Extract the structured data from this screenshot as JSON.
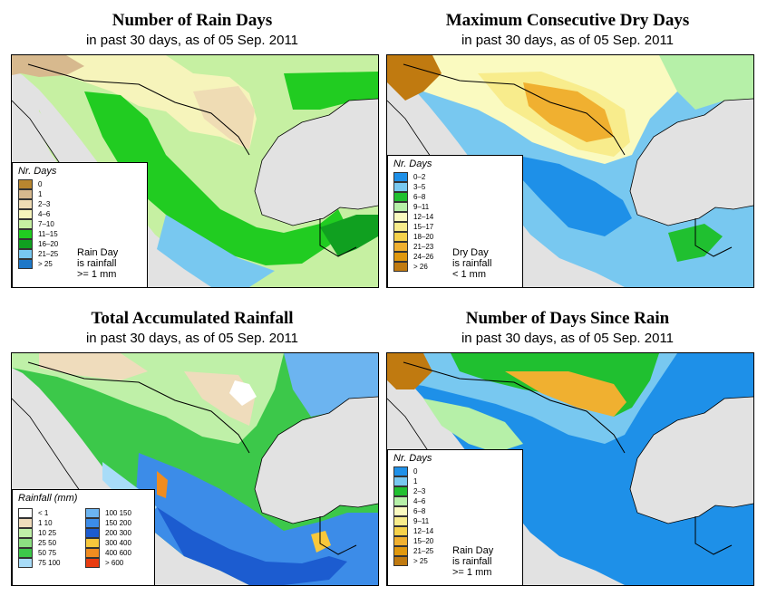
{
  "panels": [
    {
      "title": "Number of Rain Days",
      "subtitle": "in past 30 days, as of  05 Sep. 2011",
      "legend_title": "Nr. Days",
      "legend": [
        {
          "label": "0",
          "color": "#b8862f"
        },
        {
          "label": "1",
          "color": "#d7b98e"
        },
        {
          "label": "2–3",
          "color": "#efdcb4"
        },
        {
          "label": "4–6",
          "color": "#f6f4bb"
        },
        {
          "label": "7–10",
          "color": "#c6f0a2"
        },
        {
          "label": "11–15",
          "color": "#21cc21"
        },
        {
          "label": "16–20",
          "color": "#10a020"
        },
        {
          "label": "21–25",
          "color": "#78c8f0"
        },
        {
          "label": "> 25",
          "color": "#1e78c8"
        }
      ],
      "note": [
        "Rain Day",
        "is rainfall",
        ">= 1 mm"
      ]
    },
    {
      "title": "Maximum Consecutive Dry Days",
      "subtitle": "in past 30 days, as of  05 Sep. 2011",
      "legend_title": "Nr. Days",
      "legend": [
        {
          "label": "0–2",
          "color": "#1e90e8"
        },
        {
          "label": "3–5",
          "color": "#78c8f0"
        },
        {
          "label": "6–8",
          "color": "#20c030"
        },
        {
          "label": "9–11",
          "color": "#b6f0a8"
        },
        {
          "label": "12–14",
          "color": "#fafac0"
        },
        {
          "label": "15–17",
          "color": "#f8ec8c"
        },
        {
          "label": "18–20",
          "color": "#f6d24c"
        },
        {
          "label": "21–23",
          "color": "#f0b030"
        },
        {
          "label": "24–26",
          "color": "#e0980e"
        },
        {
          "label": "> 26",
          "color": "#c07a10"
        }
      ],
      "note": [
        "Dry Day",
        "is rainfall",
        "< 1 mm"
      ]
    },
    {
      "title": "Total Accumulated Rainfall",
      "subtitle": "in past 30 days, as of  05 Sep. 2011",
      "legend_title": "Rainfall (mm)",
      "legend": [
        {
          "label": "< 1",
          "color": "#ffffff"
        },
        {
          "label": "1    10",
          "color": "#efdcbc"
        },
        {
          "label": "10    25",
          "color": "#bff0a8"
        },
        {
          "label": "25    50",
          "color": "#8ce082"
        },
        {
          "label": "50    75",
          "color": "#3cc84a"
        },
        {
          "label": "75   100",
          "color": "#a8dcf8"
        },
        {
          "label": "100   150",
          "color": "#6cb4f0"
        },
        {
          "label": "150   200",
          "color": "#3c8ce8"
        },
        {
          "label": "200   300",
          "color": "#1c5cd0"
        },
        {
          "label": "300   400",
          "color": "#f8c83c"
        },
        {
          "label": "400   600",
          "color": "#f08c20"
        },
        {
          "label": "> 600",
          "color": "#e83c10"
        }
      ]
    },
    {
      "title": "Number of Days Since Rain",
      "subtitle": "in past 30 days, as of  05 Sep. 2011",
      "legend_title": "Nr. Days",
      "legend": [
        {
          "label": "0",
          "color": "#1e90e8"
        },
        {
          "label": "1",
          "color": "#78c8f0"
        },
        {
          "label": "2–3",
          "color": "#20c030"
        },
        {
          "label": "4–6",
          "color": "#b6f0a8"
        },
        {
          "label": "6–8",
          "color": "#fafac0"
        },
        {
          "label": "9–11",
          "color": "#f8ec8c"
        },
        {
          "label": "12–14",
          "color": "#f6d24c"
        },
        {
          "label": "15–20",
          "color": "#f0b030"
        },
        {
          "label": "21–25",
          "color": "#e0980e"
        },
        {
          "label": "> 25",
          "color": "#c07a10"
        }
      ],
      "note": [
        "Rain Day",
        "is rainfall",
        ">= 1 mm"
      ]
    }
  ]
}
